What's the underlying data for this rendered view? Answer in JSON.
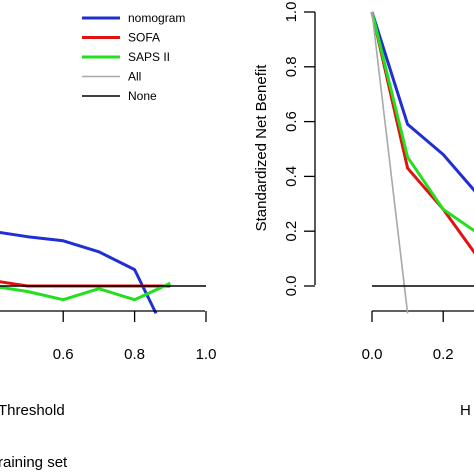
{
  "chart_data": [
    {
      "type": "line",
      "panel": "left",
      "xlabel": "Threshold",
      "caption": "raining set",
      "xlim": [
        0,
        1.0
      ],
      "ylim": [
        -0.1,
        1.0
      ],
      "x_ticks": [
        "0.6",
        "0.8",
        "1.0"
      ],
      "legend": {
        "placement": "top-right",
        "entries": [
          "nomogram",
          "SOFA",
          "SAPS II",
          "All",
          "None"
        ]
      },
      "series": [
        {
          "name": "nomogram",
          "color": "#1f2fd1",
          "x": [
            0.3,
            0.4,
            0.5,
            0.6,
            0.7,
            0.8,
            0.86
          ],
          "y": [
            0.23,
            0.2,
            0.18,
            0.165,
            0.125,
            0.06,
            -0.1
          ]
        },
        {
          "name": "SOFA",
          "color": "#e01212",
          "x": [
            0.3,
            0.4,
            0.5,
            0.6,
            0.7,
            0.8,
            0.9
          ],
          "y": [
            0.05,
            0.02,
            0.0,
            0.0,
            0.0,
            0.0,
            0.0
          ]
        },
        {
          "name": "SAPS II",
          "color": "#22e01e",
          "x": [
            0.4,
            0.5,
            0.6,
            0.7,
            0.8,
            0.9
          ],
          "y": [
            0.0,
            -0.02,
            -0.05,
            -0.01,
            -0.05,
            0.01
          ]
        },
        {
          "name": "None",
          "color": "#000000",
          "x": [
            0.0,
            1.0
          ],
          "y": [
            0.0,
            0.0
          ]
        }
      ]
    },
    {
      "type": "line",
      "panel": "right",
      "ylabel": "Standardized Net Benefit",
      "xlabel": "H",
      "xlim": [
        0,
        1.0
      ],
      "ylim": [
        -0.1,
        1.0
      ],
      "x_ticks": [
        "0.0",
        "0.2"
      ],
      "y_ticks": [
        "0.0",
        "0.2",
        "0.4",
        "0.6",
        "0.8",
        "1.0"
      ],
      "series": [
        {
          "name": "nomogram",
          "color": "#1f2fd1",
          "x": [
            0.0,
            0.1,
            0.2,
            0.3
          ],
          "y": [
            1.0,
            0.59,
            0.48,
            0.33
          ]
        },
        {
          "name": "SOFA",
          "color": "#e01212",
          "x": [
            0.0,
            0.1,
            0.2,
            0.3
          ],
          "y": [
            1.0,
            0.43,
            0.28,
            0.1
          ]
        },
        {
          "name": "SAPS II",
          "color": "#22e01e",
          "x": [
            0.0,
            0.1,
            0.2,
            0.3
          ],
          "y": [
            1.0,
            0.47,
            0.28,
            0.19
          ]
        },
        {
          "name": "All",
          "color": "#a8a8a8",
          "x": [
            0.0,
            0.1
          ],
          "y": [
            1.0,
            -0.1
          ]
        },
        {
          "name": "None",
          "color": "#000000",
          "x": [
            0.0,
            0.3
          ],
          "y": [
            0.0,
            0.0
          ]
        }
      ]
    }
  ]
}
